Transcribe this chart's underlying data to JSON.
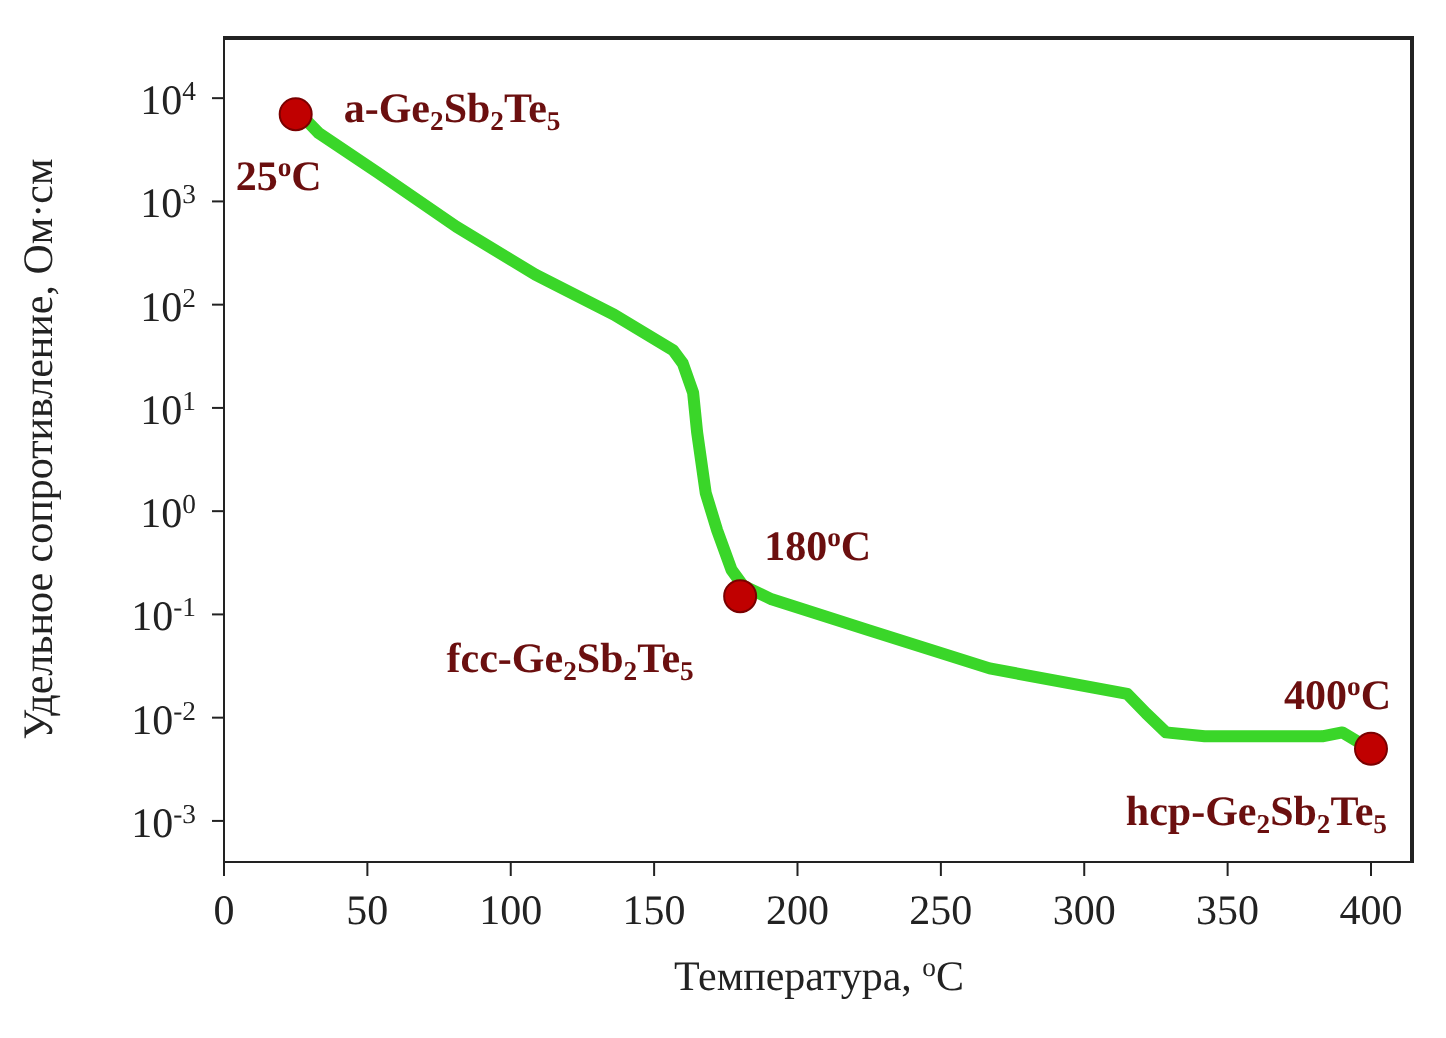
{
  "chart_data": {
    "type": "line",
    "xlabel": "Температура, $^{o}$C",
    "ylabel": "Удельное сопротивление,  Ом·см",
    "log": "y",
    "grid": false,
    "legend": false,
    "xlim": [
      0,
      415
    ],
    "xticks": [
      0,
      50,
      100,
      150,
      200,
      250,
      300,
      350,
      400
    ],
    "ylim": [
      0.0004,
      40000
    ],
    "yticks": [
      {
        "value": 10000,
        "label": "10$^{4}$"
      },
      {
        "value": 1000,
        "label": "10$^{3}$"
      },
      {
        "value": 100,
        "label": "10$^{2}$"
      },
      {
        "value": 10,
        "label": "10$^{1}$"
      },
      {
        "value": 1,
        "label": "10$^{0}$"
      },
      {
        "value": 0.1,
        "label": "10$^{-1}$"
      },
      {
        "value": 0.01,
        "label": "10$^{-2}$"
      },
      {
        "value": 0.001,
        "label": "10$^{-3}$"
      }
    ],
    "series": [
      {
        "color": "#3ad629",
        "marker": "none",
        "line_style": "solid",
        "x": [
          29.5,
          33,
          53.6,
          81,
          108.6,
          136,
          156.7,
          160,
          163.6,
          165,
          168,
          172,
          177,
          181,
          191,
          225,
          267,
          315,
          321.6,
          328.5,
          342,
          383,
          390,
          397
        ],
        "values": [
          5800,
          4600,
          1900,
          570,
          195,
          80,
          36,
          27,
          14,
          5.8,
          1.5,
          0.65,
          0.27,
          0.19,
          0.14,
          0.07,
          0.03,
          0.017,
          0.011,
          0.0072,
          0.0066,
          0.0066,
          0.0072,
          0.0055
        ]
      },
      {
        "type": "scatter",
        "color": "#c00000",
        "marker": "circle",
        "x": [
          25,
          180,
          400
        ],
        "values": [
          7000,
          0.15,
          0.005
        ]
      }
    ],
    "annotations": [
      {
        "text": "a-Ge$_{2}$Sb$_{2}$Te$_{5}$",
        "x": 25,
        "y": 7000
      },
      {
        "text": "25$^{o}$C",
        "x": 25,
        "y": 7000
      },
      {
        "text": "180$^{o}$C",
        "x": 180,
        "y": 0.15
      },
      {
        "text": "fcc-Ge$_{2}$Sb$_{2}$Te$_{5}$",
        "x": 180,
        "y": 0.15
      },
      {
        "text": "400$^{o}$C",
        "x": 400,
        "y": 0.005
      },
      {
        "text": "hcp-Ge$_{2}$Sb$_{2}$Te$_{5}$",
        "x": 400,
        "y": 0.005
      }
    ]
  }
}
